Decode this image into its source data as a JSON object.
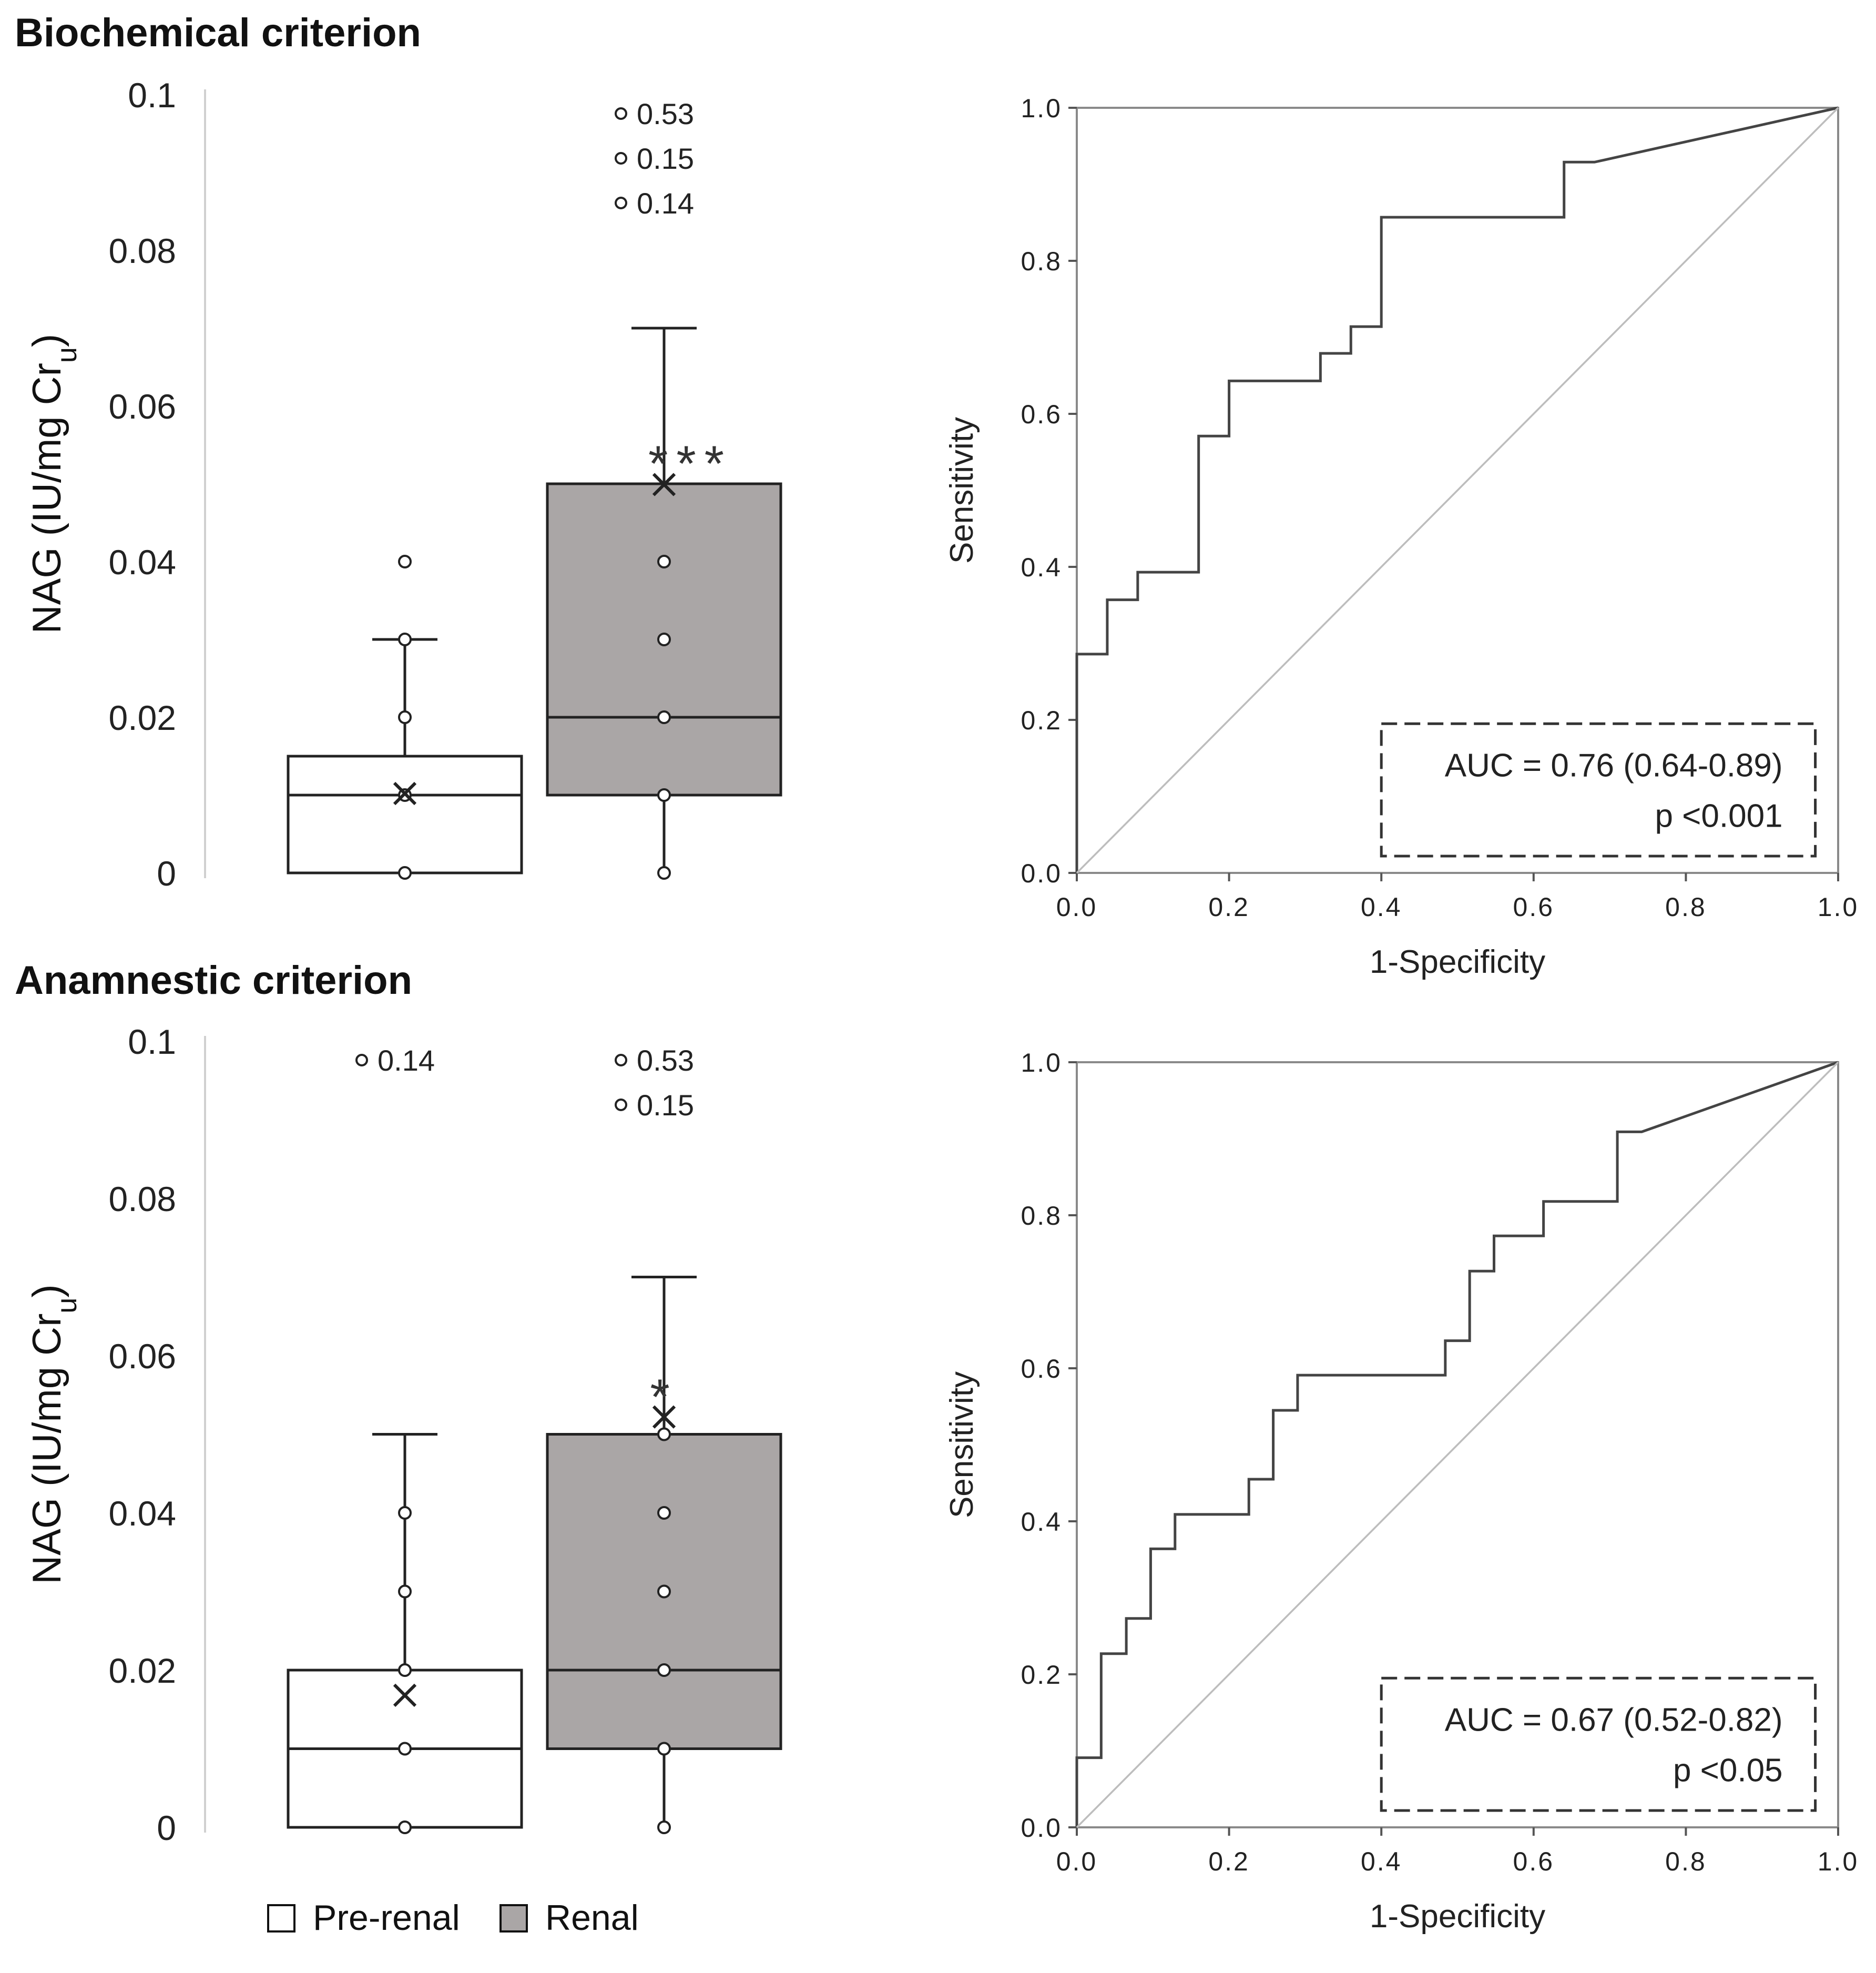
{
  "figure": {
    "legend": {
      "items": [
        {
          "label": "Pre-renal",
          "color": "#ffffff"
        },
        {
          "label": "Renal",
          "color": "#aaa6a6"
        }
      ]
    }
  },
  "chart_data": [
    {
      "type": "box",
      "panel": "biochemical-box",
      "title": "Biochemical criterion",
      "ylabel": "NAG (IU/mg Cr",
      "ylabel_subscript": "u",
      "ylabel_close": ")",
      "ylim": [
        0,
        0.1
      ],
      "y_ticks": [
        0,
        0.02,
        0.04,
        0.06,
        0.08,
        0.1
      ],
      "y_tick_labels": [
        "0",
        "0.02",
        "0.04",
        "0.06",
        "0.08",
        "0.1"
      ],
      "groups": [
        {
          "name": "Pre-renal",
          "fill": "#ffffff",
          "q1": 0.0,
          "median": 0.01,
          "q3": 0.015,
          "whisker_low": 0.0,
          "whisker_high": 0.03,
          "mean": 0.0102,
          "points": [
            0.0,
            0.01,
            0.02,
            0.03,
            0.04
          ],
          "outliers": [],
          "significance": ""
        },
        {
          "name": "Renal",
          "fill": "#aaa6a6",
          "q1": 0.01,
          "median": 0.02,
          "q3": 0.05,
          "whisker_low": 0.0,
          "whisker_high": 0.07,
          "mean": 0.0499,
          "points": [
            0.0,
            0.01,
            0.02,
            0.03,
            0.04
          ],
          "outliers": [
            "0.53",
            "0.15",
            "0.14"
          ],
          "significance": "***"
        }
      ]
    },
    {
      "type": "line",
      "panel": "biochemical-roc",
      "xlabel": "1-Specificity",
      "ylabel": "Sensitivity",
      "xlim": [
        0,
        1
      ],
      "ylim": [
        0,
        1
      ],
      "x_tick_labels": [
        "0.0",
        "0.2",
        "0.4",
        "0.6",
        "0.8",
        "1.0"
      ],
      "y_tick_labels": [
        "0.0",
        "0.2",
        "0.4",
        "0.6",
        "0.8",
        "1.0"
      ],
      "series": [
        {
          "name": "ROC",
          "x": [
            0,
            0,
            0.04,
            0.04,
            0.08,
            0.08,
            0.16,
            0.16,
            0.2,
            0.2,
            0.32,
            0.32,
            0.36,
            0.36,
            0.4,
            0.4,
            0.64,
            0.64,
            0.68,
            1.0
          ],
          "y": [
            0,
            0.286,
            0.286,
            0.357,
            0.357,
            0.393,
            0.393,
            0.571,
            0.571,
            0.643,
            0.643,
            0.679,
            0.679,
            0.714,
            0.714,
            0.857,
            0.857,
            0.929,
            0.929,
            1.0
          ]
        },
        {
          "name": "Reference",
          "x": [
            0,
            1
          ],
          "y": [
            0,
            1
          ]
        }
      ],
      "annotation": {
        "auc": "AUC = 0.76 (0.64-0.89)",
        "p": "p <0.001"
      }
    },
    {
      "type": "box",
      "panel": "anamnestic-box",
      "title": "Anamnestic criterion",
      "ylabel": "NAG (IU/mg Cr",
      "ylabel_subscript": "u",
      "ylabel_close": ")",
      "ylim": [
        0,
        0.1
      ],
      "y_ticks": [
        0,
        0.02,
        0.04,
        0.06,
        0.08,
        0.1
      ],
      "y_tick_labels": [
        "0",
        "0.02",
        "0.04",
        "0.06",
        "0.08",
        "0.1"
      ],
      "groups": [
        {
          "name": "Pre-renal",
          "fill": "#ffffff",
          "q1": 0.0,
          "median": 0.01,
          "q3": 0.02,
          "whisker_low": 0.0,
          "whisker_high": 0.05,
          "mean": 0.0168,
          "points": [
            0.0,
            0.01,
            0.02,
            0.03,
            0.04
          ],
          "outliers": [
            "0.14"
          ],
          "significance": ""
        },
        {
          "name": "Renal",
          "fill": "#aaa6a6",
          "q1": 0.01,
          "median": 0.02,
          "q3": 0.05,
          "whisker_low": 0.0,
          "whisker_high": 0.07,
          "mean": 0.0522,
          "points": [
            0.0,
            0.01,
            0.02,
            0.03,
            0.04,
            0.05
          ],
          "outliers": [
            "0.53",
            "0.15"
          ],
          "significance": "*"
        }
      ]
    },
    {
      "type": "line",
      "panel": "anamnestic-roc",
      "xlabel": "1-Specificity",
      "ylabel": "Sensitivity",
      "xlim": [
        0,
        1
      ],
      "ylim": [
        0,
        1
      ],
      "x_tick_labels": [
        "0.0",
        "0.2",
        "0.4",
        "0.6",
        "0.8",
        "1.0"
      ],
      "y_tick_labels": [
        "0.0",
        "0.2",
        "0.4",
        "0.6",
        "0.8",
        "1.0"
      ],
      "series": [
        {
          "name": "ROC",
          "x": [
            0,
            0,
            0.032,
            0.032,
            0.065,
            0.065,
            0.097,
            0.097,
            0.129,
            0.129,
            0.226,
            0.226,
            0.258,
            0.258,
            0.29,
            0.29,
            0.484,
            0.484,
            0.516,
            0.516,
            0.548,
            0.548,
            0.613,
            0.613,
            0.71,
            0.71,
            0.742,
            1.0
          ],
          "y": [
            0,
            0.091,
            0.091,
            0.227,
            0.227,
            0.273,
            0.273,
            0.364,
            0.364,
            0.409,
            0.409,
            0.455,
            0.455,
            0.545,
            0.545,
            0.591,
            0.591,
            0.636,
            0.636,
            0.727,
            0.727,
            0.773,
            0.773,
            0.818,
            0.818,
            0.909,
            0.909,
            1.0
          ]
        },
        {
          "name": "Reference",
          "x": [
            0,
            1
          ],
          "y": [
            0,
            1
          ]
        }
      ],
      "annotation": {
        "auc": "AUC = 0.67 (0.52-0.82)",
        "p": "p <0.05"
      }
    }
  ]
}
